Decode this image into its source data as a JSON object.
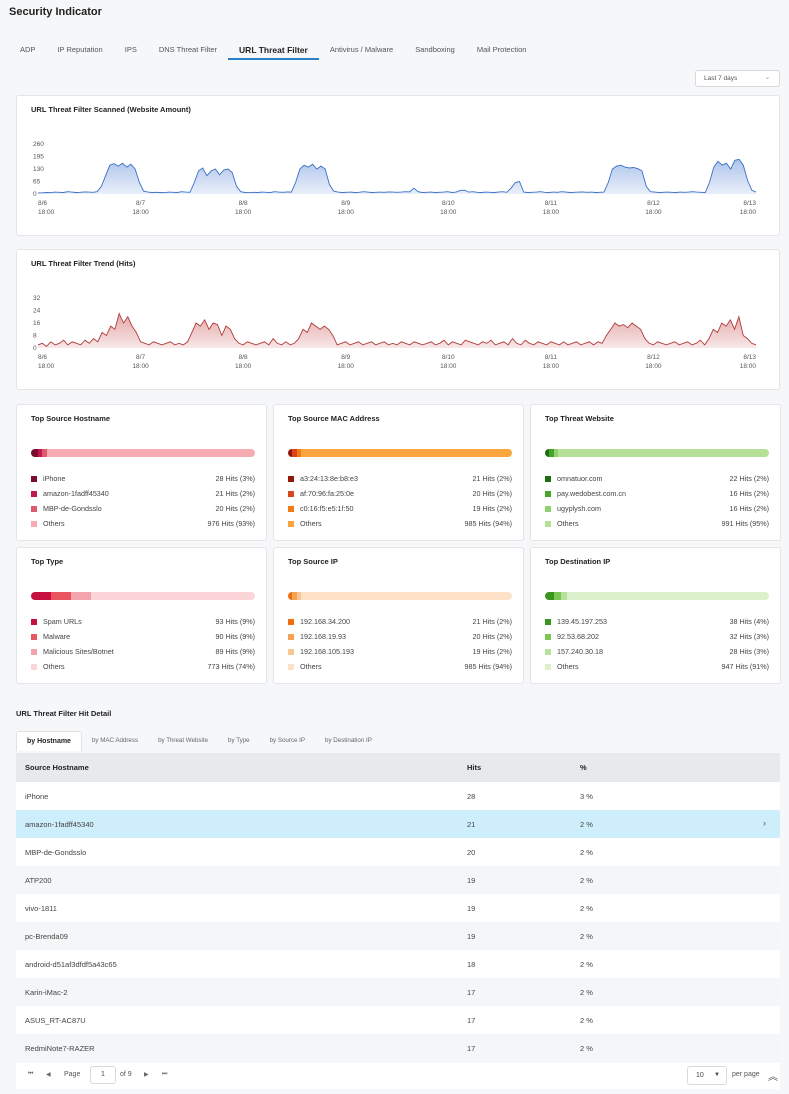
{
  "page_title": "Security Indicator",
  "tabs": [
    "ADP",
    "IP Reputation",
    "IPS",
    "DNS Threat Filter",
    "URL Threat Filter",
    "Antivirus / Malware",
    "Sandboxing",
    "Mail Protection"
  ],
  "active_tab": "URL Threat Filter",
  "range_select": {
    "value": "Last 7 days"
  },
  "colors": {
    "blue_line": "#3a6fc4",
    "blue_fill": "#a9c1ea",
    "red_line": "#b23a3a",
    "red_fill": "#e2a3a3",
    "tab_underline": "#2a7fc9",
    "selected_row": "#cfeefb"
  },
  "scanned_chart": {
    "title": "URL Threat Filter Scanned (Website Amount)",
    "chart_data": {
      "type": "area",
      "title": "URL Threat Filter Scanned (Website Amount)",
      "x_ticks": [
        [
          "8/6",
          "18:00"
        ],
        [
          "8/7",
          "18:00"
        ],
        [
          "8/8",
          "18:00"
        ],
        [
          "8/9",
          "18:00"
        ],
        [
          "8/10",
          "18:00"
        ],
        [
          "8/11",
          "18:00"
        ],
        [
          "8/12",
          "18:00"
        ],
        [
          "8/13",
          "18:00"
        ]
      ],
      "y_ticks": [
        "260",
        "195",
        "130",
        "65",
        "0"
      ],
      "ylim": [
        0,
        260
      ],
      "values": [
        5,
        6,
        8,
        7,
        10,
        9,
        8,
        12,
        10,
        8,
        9,
        11,
        10,
        9,
        12,
        40,
        95,
        150,
        158,
        145,
        160,
        140,
        155,
        130,
        60,
        15,
        10,
        8,
        9,
        8,
        7,
        10,
        9,
        8,
        12,
        10,
        9,
        60,
        120,
        135,
        95,
        120,
        130,
        100,
        125,
        130,
        110,
        40,
        12,
        8,
        7,
        9,
        8,
        10,
        9,
        8,
        12,
        10,
        9,
        11,
        10,
        60,
        130,
        150,
        140,
        155,
        130,
        145,
        130,
        50,
        15,
        10,
        8,
        9,
        10,
        8,
        9,
        12,
        10,
        8,
        9,
        10,
        9,
        11,
        10,
        9,
        10,
        12,
        11,
        30,
        12,
        8,
        9,
        10,
        8,
        9,
        10,
        12,
        8,
        10,
        18,
        20,
        10,
        12,
        9,
        8,
        10,
        9,
        8,
        10,
        12,
        9,
        30,
        60,
        65,
        10,
        8,
        9,
        10,
        12,
        9,
        8,
        10,
        9,
        12,
        10,
        8,
        9,
        10,
        11,
        9,
        10,
        8,
        9,
        10,
        60,
        130,
        145,
        150,
        140,
        135,
        138,
        132,
        120,
        40,
        12,
        10,
        8,
        9,
        10,
        9,
        8,
        10,
        9,
        10,
        12,
        10,
        9,
        8,
        60,
        140,
        170,
        150,
        160,
        130,
        175,
        180,
        150,
        70,
        20,
        10
      ]
    }
  },
  "trend_chart": {
    "title": "URL Threat Filter Trend (Hits)",
    "chart_data": {
      "type": "area",
      "title": "URL Threat Filter Trend (Hits)",
      "x_ticks": [
        [
          "8/6",
          "18:00"
        ],
        [
          "8/7",
          "18:00"
        ],
        [
          "8/8",
          "18:00"
        ],
        [
          "8/9",
          "18:00"
        ],
        [
          "8/10",
          "18:00"
        ],
        [
          "8/11",
          "18:00"
        ],
        [
          "8/12",
          "18:00"
        ],
        [
          "8/13",
          "18:00"
        ]
      ],
      "y_ticks": [
        "32",
        "24",
        "16",
        "8",
        "0"
      ],
      "ylim": [
        0,
        32
      ],
      "values": [
        2,
        3,
        1,
        4,
        2,
        3,
        5,
        2,
        4,
        3,
        2,
        5,
        3,
        6,
        4,
        10,
        8,
        14,
        12,
        22,
        16,
        20,
        14,
        10,
        4,
        3,
        2,
        4,
        3,
        2,
        3,
        4,
        2,
        3,
        2,
        4,
        10,
        16,
        14,
        18,
        12,
        16,
        15,
        8,
        14,
        12,
        6,
        3,
        2,
        4,
        3,
        2,
        3,
        4,
        2,
        6,
        3,
        2,
        4,
        2,
        3,
        6,
        12,
        10,
        16,
        14,
        12,
        14,
        12,
        8,
        2,
        3,
        4,
        2,
        3,
        4,
        2,
        3,
        4,
        2,
        3,
        4,
        2,
        3,
        2,
        4,
        3,
        2,
        4,
        3,
        2,
        3,
        4,
        2,
        3,
        5,
        2,
        4,
        3,
        2,
        5,
        4,
        3,
        2,
        4,
        3,
        5,
        2,
        3,
        4,
        2,
        6,
        3,
        2,
        5,
        3,
        2,
        4,
        3,
        2,
        4,
        3,
        2,
        4,
        2,
        3,
        4,
        2,
        3,
        4,
        2,
        4,
        3,
        8,
        12,
        16,
        14,
        15,
        13,
        16,
        14,
        12,
        6,
        3,
        2,
        4,
        3,
        2,
        3,
        4,
        2,
        3,
        4,
        2,
        3,
        5,
        2,
        6,
        12,
        10,
        16,
        14,
        18,
        12,
        20,
        8,
        6,
        3,
        2
      ]
    }
  },
  "tops": [
    {
      "title": "Top Source Hostname",
      "colors": [
        "#7a0d2e",
        "#c2184f",
        "#e05a6e",
        "#f6aab1"
      ],
      "items": [
        {
          "label": "iPhone",
          "value": "28 Hits (3%)",
          "pct": 3
        },
        {
          "label": "amazon-1fadff45340",
          "value": "21 Hits (2%)",
          "pct": 2
        },
        {
          "label": "MBP-de-Gondsslo",
          "value": "20 Hits (2%)",
          "pct": 2
        },
        {
          "label": "Others",
          "value": "976 Hits (93%)",
          "pct": 93
        }
      ]
    },
    {
      "title": "Top Source MAC Address",
      "colors": [
        "#8f1a0a",
        "#d9451c",
        "#f17a15",
        "#fba53f"
      ],
      "items": [
        {
          "label": "a3:24:13:8e:b8:e3",
          "value": "21 Hits (2%)",
          "pct": 2
        },
        {
          "label": "af:70:96:fa:25:0e",
          "value": "20 Hits (2%)",
          "pct": 2
        },
        {
          "label": "c0:16:f5:e5:1f:50",
          "value": "19 Hits (2%)",
          "pct": 2
        },
        {
          "label": "Others",
          "value": "985 Hits (94%)",
          "pct": 94
        }
      ]
    },
    {
      "title": "Top Threat Website",
      "colors": [
        "#1d6e12",
        "#48a52c",
        "#8fd16e",
        "#b5e095"
      ],
      "items": [
        {
          "label": "omnatuor.com",
          "value": "22 Hits (2%)",
          "pct": 2
        },
        {
          "label": "pay.wedobest.com.cn",
          "value": "16 Hits (2%)",
          "pct": 2
        },
        {
          "label": "ugyplysh.com",
          "value": "16 Hits (2%)",
          "pct": 2
        },
        {
          "label": "Others",
          "value": "991 Hits (95%)",
          "pct": 95
        }
      ]
    },
    {
      "title": "Top Type",
      "colors": [
        "#c8103f",
        "#ea5660",
        "#f2a3ac",
        "#fcd5d9"
      ],
      "items": [
        {
          "label": "Spam URLs",
          "value": "93 Hits (9%)",
          "pct": 9
        },
        {
          "label": "Malware",
          "value": "90 Hits (9%)",
          "pct": 9
        },
        {
          "label": "Malicious Sites/Botnet",
          "value": "89 Hits (9%)",
          "pct": 9
        },
        {
          "label": "Others",
          "value": "773 Hits (74%)",
          "pct": 74
        }
      ]
    },
    {
      "title": "Top Source IP",
      "colors": [
        "#f06e12",
        "#f3a351",
        "#f8c690",
        "#fde2c8"
      ],
      "items": [
        {
          "label": "192.168.34.200",
          "value": "21 Hits (2%)",
          "pct": 2
        },
        {
          "label": "192.168.19.93",
          "value": "20 Hits (2%)",
          "pct": 2
        },
        {
          "label": "192.168.105.193",
          "value": "19 Hits (2%)",
          "pct": 2
        },
        {
          "label": "Others",
          "value": "985 Hits (94%)",
          "pct": 94
        }
      ]
    },
    {
      "title": "Top Destination IP",
      "colors": [
        "#3a9420",
        "#7cc654",
        "#b8e29c",
        "#dcf0cc"
      ],
      "items": [
        {
          "label": "139.45.197.253",
          "value": "38 Hits (4%)",
          "pct": 4
        },
        {
          "label": "92.53.68.202",
          "value": "32 Hits (3%)",
          "pct": 3
        },
        {
          "label": "157.240.30.18",
          "value": "28 Hits (3%)",
          "pct": 3
        },
        {
          "label": "Others",
          "value": "947 Hits (91%)",
          "pct": 91
        }
      ]
    }
  ],
  "detail": {
    "title": "URL Threat Filter Hit Detail",
    "subtabs": [
      "by Hostname",
      "by MAC Address",
      "by Threat Website",
      "by Type",
      "by Source IP",
      "by Destination IP"
    ],
    "active_subtab": "by Hostname",
    "columns": [
      "Source Hostname",
      "Hits",
      "%"
    ],
    "rows": [
      [
        "iPhone",
        "28",
        "3 %"
      ],
      [
        "amazon-1fadff45340",
        "21",
        "2 %"
      ],
      [
        "MBP-de-Gondsslo",
        "20",
        "2 %"
      ],
      [
        "ATP200",
        "19",
        "2 %"
      ],
      [
        "vivo-1811",
        "19",
        "2 %"
      ],
      [
        "pc-Brenda09",
        "19",
        "2 %"
      ],
      [
        "android-d51af3dfdf5a43c65",
        "18",
        "2 %"
      ],
      [
        "Karin-iMac-2",
        "17",
        "2 %"
      ],
      [
        "ASUS_RT-AC87U",
        "17",
        "2 %"
      ],
      [
        "RedmiNote7-RAZER",
        "17",
        "2 %"
      ]
    ],
    "selected_row": 1
  },
  "pager": {
    "page_label": "Page",
    "page_value": "1",
    "of_label": "of 9",
    "per_page_value": "10",
    "per_page_label": "per page"
  }
}
